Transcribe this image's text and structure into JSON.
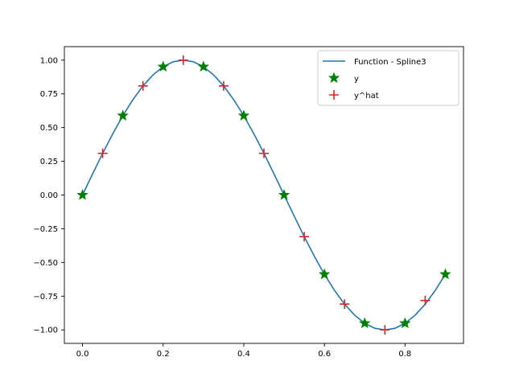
{
  "chart_data": {
    "type": "line",
    "title": "",
    "xlabel": "",
    "ylabel": "",
    "xlim": [
      -0.045,
      0.945
    ],
    "ylim": [
      -1.1,
      1.1
    ],
    "grid": false,
    "legend_position": "top-right",
    "x_ticks": [
      {
        "value": 0.0,
        "label": "0.0"
      },
      {
        "value": 0.2,
        "label": "0.2"
      },
      {
        "value": 0.4,
        "label": "0.4"
      },
      {
        "value": 0.6,
        "label": "0.6"
      },
      {
        "value": 0.8,
        "label": "0.8"
      }
    ],
    "y_ticks": [
      {
        "value": 1.0,
        "label": "1.00"
      },
      {
        "value": 0.75,
        "label": "0.75"
      },
      {
        "value": 0.5,
        "label": "0.50"
      },
      {
        "value": 0.25,
        "label": "0.25"
      },
      {
        "value": 0.0,
        "label": "0.00"
      },
      {
        "value": -0.25,
        "label": "−0.25"
      },
      {
        "value": -0.5,
        "label": "−0.50"
      },
      {
        "value": -0.75,
        "label": "−0.75"
      },
      {
        "value": -1.0,
        "label": "−1.00"
      }
    ],
    "series": [
      {
        "name": "Function - Spline3",
        "kind": "line",
        "color": "#1f77b4",
        "x": [
          0.0,
          0.025,
          0.05,
          0.075,
          0.1,
          0.125,
          0.15,
          0.175,
          0.2,
          0.225,
          0.25,
          0.275,
          0.3,
          0.325,
          0.35,
          0.375,
          0.4,
          0.425,
          0.45,
          0.475,
          0.5,
          0.525,
          0.55,
          0.575,
          0.6,
          0.625,
          0.65,
          0.675,
          0.7,
          0.725,
          0.75,
          0.775,
          0.8,
          0.825,
          0.85,
          0.875,
          0.9
        ],
        "y": [
          0.0,
          0.156,
          0.309,
          0.454,
          0.588,
          0.707,
          0.809,
          0.891,
          0.951,
          0.988,
          1.0,
          0.988,
          0.951,
          0.891,
          0.809,
          0.707,
          0.588,
          0.454,
          0.309,
          0.156,
          0.0,
          -0.156,
          -0.309,
          -0.454,
          -0.588,
          -0.707,
          -0.809,
          -0.891,
          -0.951,
          -0.988,
          -1.0,
          -0.988,
          -0.951,
          -0.891,
          -0.809,
          -0.707,
          -0.588
        ]
      },
      {
        "name": "y",
        "kind": "scatter",
        "marker": "star",
        "color": "#008000",
        "x": [
          0.0,
          0.1,
          0.2,
          0.3,
          0.4,
          0.5,
          0.6,
          0.7,
          0.8,
          0.9
        ],
        "y": [
          0.0,
          0.588,
          0.951,
          0.951,
          0.588,
          0.0,
          -0.588,
          -0.951,
          -0.951,
          -0.588
        ]
      },
      {
        "name": "y^hat",
        "kind": "scatter",
        "marker": "plus",
        "color": "#d62728",
        "x": [
          0.05,
          0.15,
          0.25,
          0.35,
          0.45,
          0.55,
          0.65,
          0.75,
          0.85
        ],
        "y": [
          0.309,
          0.809,
          1.0,
          0.809,
          0.309,
          -0.309,
          -0.809,
          -1.0,
          -0.782
        ]
      }
    ]
  }
}
